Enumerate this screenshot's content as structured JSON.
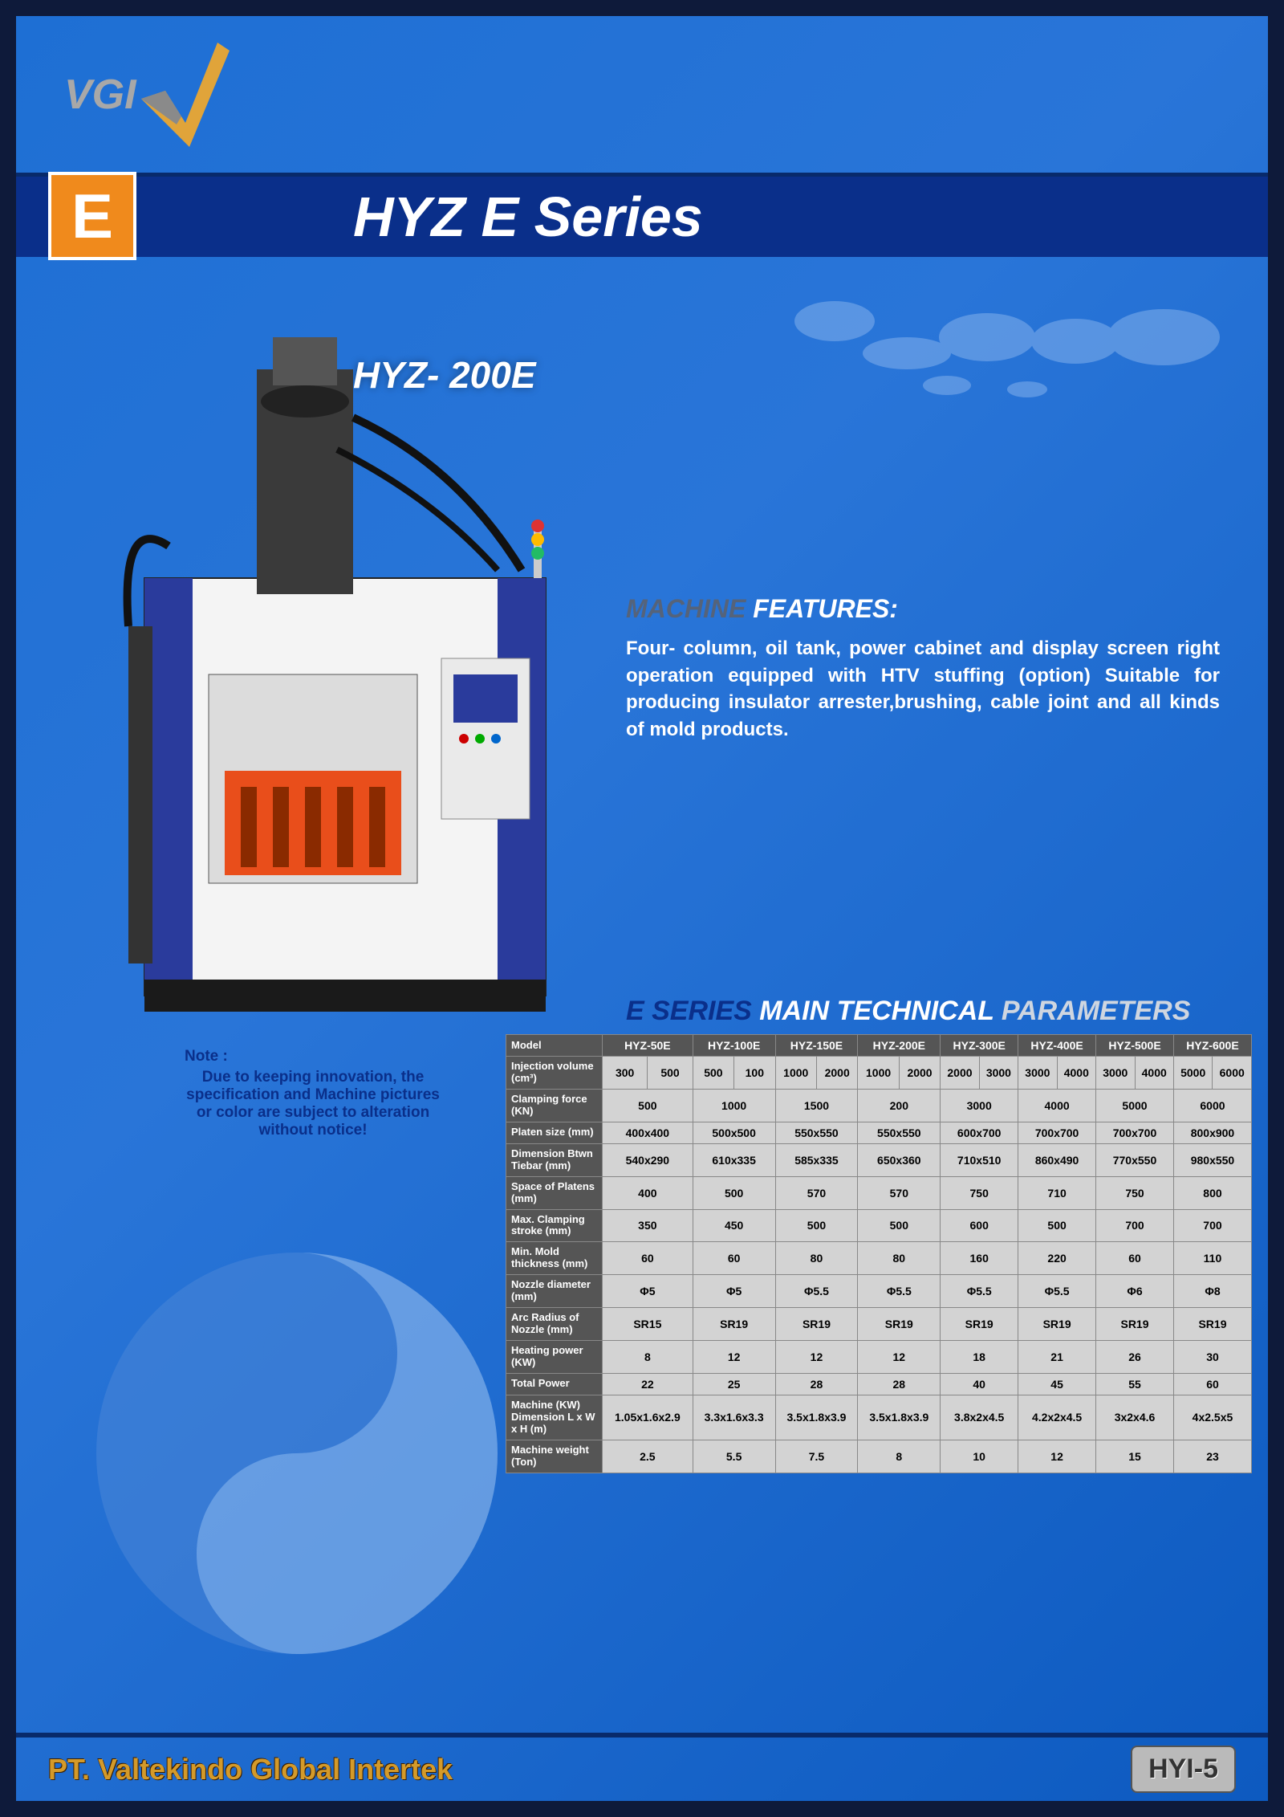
{
  "logo": {
    "text": "VGI"
  },
  "header": {
    "badge": "E",
    "title": "HYZ E Series"
  },
  "model_label": "HYZ- 200E",
  "features": {
    "head_gray": "MACHINE",
    "head_blue": "FEATURES:",
    "text": "Four- column, oil tank, power cabinet and display screen right operation equipped with HTV stuffing (option) Suitable for producing insulator arrester,brushing, cable joint and all kinds of mold products."
  },
  "params_heading": {
    "p1": "E SERIES",
    "p2": "MAIN TECHNICAL",
    "p3": "PARAMETERS"
  },
  "note": {
    "head": "Note :",
    "body": "Due to keeping innovation, the specification and Machine pictures or color are subject to alteration without notice!"
  },
  "table": {
    "model_label": "Model",
    "models": [
      "HYZ-50E",
      "HYZ-100E",
      "HYZ-150E",
      "HYZ-200E",
      "HYZ-300E",
      "HYZ-400E",
      "HYZ-500E",
      "HYZ-600E"
    ],
    "rows": [
      {
        "label": "Injection volume (cm³)",
        "split": true,
        "cells": [
          [
            "300",
            "500"
          ],
          [
            "500",
            "100"
          ],
          [
            "1000",
            "2000"
          ],
          [
            "1000",
            "2000"
          ],
          [
            "2000",
            "3000"
          ],
          [
            "3000",
            "4000"
          ],
          [
            "3000",
            "4000"
          ],
          [
            "5000",
            "6000"
          ]
        ]
      },
      {
        "label": "Clamping force (KN)",
        "cells": [
          "500",
          "1000",
          "1500",
          "200",
          "3000",
          "4000",
          "5000",
          "6000"
        ]
      },
      {
        "label": "Platen size (mm)",
        "cells": [
          "400x400",
          "500x500",
          "550x550",
          "550x550",
          "600x700",
          "700x700",
          "700x700",
          "800x900"
        ]
      },
      {
        "label": "Dimension Btwn Tiebar (mm)",
        "cells": [
          "540x290",
          "610x335",
          "585x335",
          "650x360",
          "710x510",
          "860x490",
          "770x550",
          "980x550"
        ]
      },
      {
        "label": "Space of Platens (mm)",
        "cells": [
          "400",
          "500",
          "570",
          "570",
          "750",
          "710",
          "750",
          "800"
        ]
      },
      {
        "label": "Max. Clamping stroke (mm)",
        "cells": [
          "350",
          "450",
          "500",
          "500",
          "600",
          "500",
          "700",
          "700"
        ]
      },
      {
        "label": "Min. Mold thickness (mm)",
        "cells": [
          "60",
          "60",
          "80",
          "80",
          "160",
          "220",
          "60",
          "110"
        ]
      },
      {
        "label": "Nozzle diameter (mm)",
        "cells": [
          "Φ5",
          "Φ5",
          "Φ5.5",
          "Φ5.5",
          "Φ5.5",
          "Φ5.5",
          "Φ6",
          "Φ8"
        ]
      },
      {
        "label": "Arc Radius of Nozzle (mm)",
        "cells": [
          "SR15",
          "SR19",
          "SR19",
          "SR19",
          "SR19",
          "SR19",
          "SR19",
          "SR19"
        ]
      },
      {
        "label": "Heating power (KW)",
        "cells": [
          "8",
          "12",
          "12",
          "12",
          "18",
          "21",
          "26",
          "30"
        ]
      },
      {
        "label": "Total Power",
        "cells": [
          "22",
          "25",
          "28",
          "28",
          "40",
          "45",
          "55",
          "60"
        ]
      },
      {
        "label": "Machine (KW) Dimension L x W x H (m)",
        "cells": [
          "1.05x1.6x2.9",
          "3.3x1.6x3.3",
          "3.5x1.8x3.9",
          "3.5x1.8x3.9",
          "3.8x2x4.5",
          "4.2x2x4.5",
          "3x2x4.6",
          "4x2.5x5"
        ]
      },
      {
        "label": "Machine weight (Ton)",
        "cells": [
          "2.5",
          "5.5",
          "7.5",
          "8",
          "10",
          "12",
          "15",
          "23"
        ]
      }
    ]
  },
  "footer": {
    "company": "PT. Valtekindo Global Intertek",
    "page": "HYI-5"
  },
  "colors": {
    "bg_dark": "#0e1a3a",
    "bg_blue1": "#1e6fd4",
    "band": "#0a2f8a",
    "badge": "#f08a1c",
    "footer_text": "#d49a2a",
    "table_head": "#555555",
    "table_body": "#d3d3d3"
  }
}
